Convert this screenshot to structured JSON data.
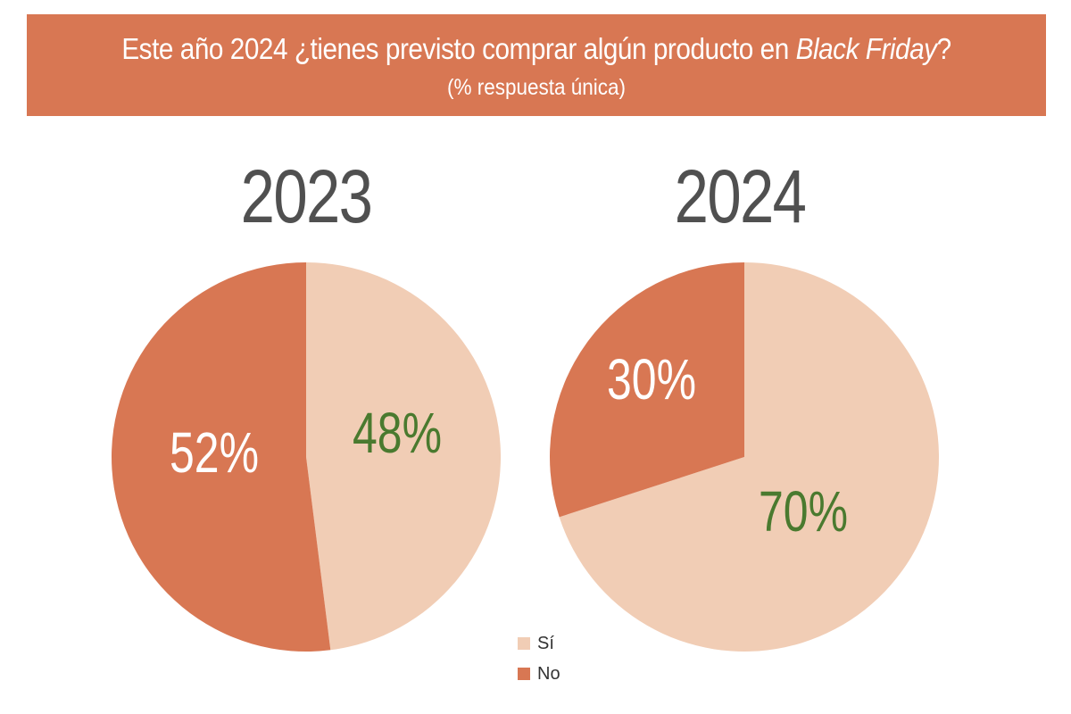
{
  "header": {
    "title_prefix": "Este año 2024 ¿tienes previsto comprar algún producto en ",
    "title_emphasis": "Black Friday",
    "title_suffix": "?",
    "subtitle": "(% respuesta única)"
  },
  "colors": {
    "banner": "#d87753",
    "si": "#f1cdb5",
    "no": "#d87753",
    "label_si": "#4a7a2f",
    "label_no": "#ffffff",
    "year_text": "#505050"
  },
  "chart_data": [
    {
      "type": "pie",
      "title": "2023",
      "labels": [
        "Sí",
        "No"
      ],
      "values": [
        48,
        52
      ],
      "value_labels": [
        "48%",
        "52%"
      ],
      "colors": [
        "#f1cdb5",
        "#d87753"
      ],
      "legend": "bottom-center"
    },
    {
      "type": "pie",
      "title": "2024",
      "labels": [
        "Sí",
        "No"
      ],
      "values": [
        70,
        30
      ],
      "value_labels": [
        "70%",
        "30%"
      ],
      "colors": [
        "#f1cdb5",
        "#d87753"
      ],
      "legend": "bottom-center"
    }
  ],
  "legend": {
    "items": [
      {
        "label": "Sí",
        "color": "#f1cdb5"
      },
      {
        "label": "No",
        "color": "#d87753"
      }
    ]
  }
}
